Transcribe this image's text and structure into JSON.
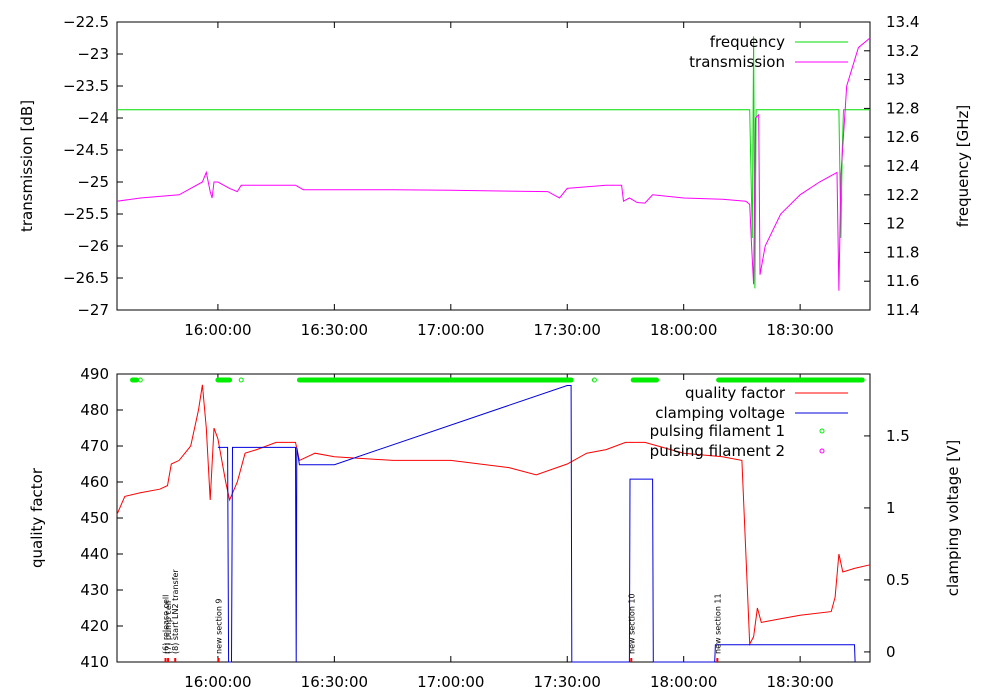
{
  "chart_data": [
    {
      "type": "line",
      "xlabel": "",
      "ylabel": "transmission [dB]",
      "y2label": "frequency [GHz]",
      "xlim": [
        "15:34:00",
        "18:48:00"
      ],
      "ylim": [
        -27,
        -22.5
      ],
      "y2lim": [
        11.4,
        13.4
      ],
      "x_ticks": [
        "16:00:00",
        "16:30:00",
        "17:00:00",
        "17:30:00",
        "18:00:00",
        "18:30:00"
      ],
      "y_ticks": [
        "-27",
        "-26.5",
        "-26",
        "-25.5",
        "-25",
        "-24.5",
        "-24",
        "-23.5",
        "-23",
        "-22.5"
      ],
      "y2_ticks": [
        "11.4",
        "11.6",
        "11.8",
        "12",
        "12.2",
        "12.4",
        "12.6",
        "12.8",
        "13",
        "13.2",
        "13.4"
      ],
      "legend": "top-right",
      "grid": false,
      "series": [
        {
          "name": "frequency",
          "color": "#00dd00",
          "axis": "y2",
          "points": [
            [
              "15:34:00",
              12.79
            ],
            [
              "18:17:00",
              12.79
            ],
            [
              "18:17:40",
              11.9
            ],
            [
              "18:18:00",
              13.3
            ],
            [
              "18:18:20",
              11.55
            ],
            [
              "18:18:40",
              12.79
            ],
            [
              "18:40:00",
              12.79
            ],
            [
              "18:40:30",
              11.9
            ],
            [
              "18:40:50",
              12.5
            ],
            [
              "18:41:10",
              12.79
            ],
            [
              "18:48:00",
              12.79
            ]
          ]
        },
        {
          "name": "transmission",
          "color": "#ff00ff",
          "axis": "y",
          "points": [
            [
              "15:34:00",
              -25.3
            ],
            [
              "15:40:00",
              -25.25
            ],
            [
              "15:50:00",
              -25.2
            ],
            [
              "15:56:00",
              -25.0
            ],
            [
              "15:57:00",
              -24.85
            ],
            [
              "15:58:00",
              -25.15
            ],
            [
              "15:58:30",
              -25.25
            ],
            [
              "15:59:00",
              -25.0
            ],
            [
              "16:00:00",
              -25.0
            ],
            [
              "16:03:00",
              -25.1
            ],
            [
              "16:05:00",
              -25.15
            ],
            [
              "16:06:00",
              -25.05
            ],
            [
              "16:20:00",
              -25.05
            ],
            [
              "16:22:00",
              -25.12
            ],
            [
              "16:45:00",
              -25.12
            ],
            [
              "17:00:00",
              -25.13
            ],
            [
              "17:25:00",
              -25.15
            ],
            [
              "17:28:00",
              -25.25
            ],
            [
              "17:30:00",
              -25.1
            ],
            [
              "17:40:00",
              -25.05
            ],
            [
              "17:44:00",
              -25.05
            ],
            [
              "17:44:30",
              -25.3
            ],
            [
              "17:46:00",
              -25.25
            ],
            [
              "17:48:00",
              -25.32
            ],
            [
              "17:50:00",
              -25.33
            ],
            [
              "17:52:00",
              -25.2
            ],
            [
              "18:00:00",
              -25.25
            ],
            [
              "18:10:00",
              -25.27
            ],
            [
              "18:16:00",
              -25.3
            ],
            [
              "18:17:00",
              -25.35
            ],
            [
              "18:17:30",
              -26.0
            ],
            [
              "18:18:00",
              -26.6
            ],
            [
              "18:18:30",
              -24.0
            ],
            [
              "18:19:20",
              -23.95
            ],
            [
              "18:19:40",
              -26.45
            ],
            [
              "18:21:00",
              -26.0
            ],
            [
              "18:25:00",
              -25.5
            ],
            [
              "18:30:00",
              -25.2
            ],
            [
              "18:35:00",
              -25.0
            ],
            [
              "18:39:30",
              -24.85
            ],
            [
              "18:40:00",
              -26.7
            ],
            [
              "18:40:30",
              -24.9
            ],
            [
              "18:42:00",
              -23.5
            ],
            [
              "18:45:00",
              -22.9
            ],
            [
              "18:48:00",
              -22.75
            ]
          ]
        }
      ]
    },
    {
      "type": "line",
      "xlabel": "",
      "ylabel": "quality factor",
      "y2label": "clamping voltage [V]",
      "xlim": [
        "15:34:00",
        "18:48:00"
      ],
      "ylim": [
        410,
        490
      ],
      "y2lim": [
        -0.07,
        1.93
      ],
      "x_ticks": [
        "16:00:00",
        "16:30:00",
        "17:00:00",
        "17:30:00",
        "18:00:00",
        "18:30:00"
      ],
      "y_ticks": [
        "410",
        "420",
        "430",
        "440",
        "450",
        "460",
        "470",
        "480",
        "490"
      ],
      "y2_ticks": [
        "0",
        "0.5",
        "1",
        "1.5"
      ],
      "legend": "top-right",
      "grid": false,
      "series": [
        {
          "name": "quality factor",
          "color": "#ff0000",
          "axis": "y",
          "points": [
            [
              "15:34:00",
              451
            ],
            [
              "15:36:00",
              456
            ],
            [
              "15:40:00",
              457
            ],
            [
              "15:45:00",
              458
            ],
            [
              "15:47:00",
              459
            ],
            [
              "15:48:00",
              465
            ],
            [
              "15:50:00",
              466
            ],
            [
              "15:53:00",
              470
            ],
            [
              "15:55:00",
              480
            ],
            [
              "15:56:00",
              487
            ],
            [
              "15:57:00",
              475
            ],
            [
              "15:58:00",
              455
            ],
            [
              "15:59:00",
              475
            ],
            [
              "16:00:00",
              472
            ],
            [
              "16:02:00",
              460
            ],
            [
              "16:03:00",
              455
            ],
            [
              "16:05:00",
              460
            ],
            [
              "16:07:00",
              468
            ],
            [
              "16:10:00",
              469
            ],
            [
              "16:15:00",
              471
            ],
            [
              "16:20:00",
              471
            ],
            [
              "16:21:00",
              466
            ],
            [
              "16:25:00",
              468
            ],
            [
              "16:30:00",
              467
            ],
            [
              "16:45:00",
              466
            ],
            [
              "17:00:00",
              466
            ],
            [
              "17:15:00",
              464
            ],
            [
              "17:22:00",
              462
            ],
            [
              "17:30:00",
              465
            ],
            [
              "17:35:00",
              468
            ],
            [
              "17:40:00",
              469
            ],
            [
              "17:45:00",
              471
            ],
            [
              "17:50:00",
              471
            ],
            [
              "18:00:00",
              468
            ],
            [
              "18:10:00",
              467
            ],
            [
              "18:15:00",
              466
            ],
            [
              "18:17:00",
              415
            ],
            [
              "18:18:00",
              417
            ],
            [
              "18:19:00",
              425
            ],
            [
              "18:20:00",
              421
            ],
            [
              "18:25:00",
              422
            ],
            [
              "18:30:00",
              423
            ],
            [
              "18:38:00",
              424
            ],
            [
              "18:39:00",
              428
            ],
            [
              "18:40:00",
              440
            ],
            [
              "18:41:00",
              435
            ],
            [
              "18:44:00",
              436
            ],
            [
              "18:48:00",
              437
            ]
          ]
        },
        {
          "name": "clamping voltage",
          "color": "#0000dd",
          "axis": "y2",
          "points": [
            [
              "16:00:00",
              1.42
            ],
            [
              "16:02:30",
              1.42
            ],
            [
              "16:02:45",
              -0.07
            ],
            [
              "16:03:30",
              -0.07
            ],
            [
              "16:03:45",
              1.42
            ],
            [
              "16:20:00",
              1.42
            ],
            [
              "16:20:10",
              -0.07
            ],
            [
              "16:20:20",
              1.42
            ],
            [
              "16:21:00",
              1.3
            ],
            [
              "16:30:00",
              1.3
            ],
            [
              "17:30:00",
              1.85
            ],
            [
              "17:31:00",
              1.85
            ],
            [
              "17:31:10",
              -0.07
            ],
            [
              "17:46:00",
              -0.07
            ],
            [
              "17:46:10",
              1.2
            ],
            [
              "17:52:00",
              1.2
            ],
            [
              "17:52:10",
              -0.07
            ],
            [
              "18:08:00",
              -0.07
            ],
            [
              "18:08:10",
              0.05
            ],
            [
              "18:44:00",
              0.05
            ],
            [
              "18:44:10",
              -0.07
            ]
          ]
        },
        {
          "name": "pulsing filament 1",
          "color": "#00ee00",
          "axis": "y",
          "segments": [
            [
              "15:38:00",
              "15:39:00"
            ],
            [
              "15:40:00",
              "15:40:30"
            ],
            [
              "16:00:00",
              "16:03:00"
            ],
            [
              "16:06:00",
              "16:06:10"
            ],
            [
              "16:21:00",
              "17:31:00"
            ],
            [
              "17:37:00",
              "17:37:10"
            ],
            [
              "17:47:00",
              "17:53:00"
            ],
            [
              "18:09:00",
              "18:46:00"
            ]
          ]
        },
        {
          "name": "pulsing filament 2",
          "color": "#ff00ff",
          "axis": "y",
          "segments": []
        }
      ],
      "annotations": [
        {
          "x": "15:46:30",
          "text": "(6) release cell"
        },
        {
          "x": "15:47:10",
          "text": "(7) pump cell"
        },
        {
          "x": "15:49:00",
          "text": "(8) start LN2 transfer"
        },
        {
          "x": "16:00:10",
          "text": "new section 9"
        },
        {
          "x": "17:46:30",
          "text": "new section 10"
        },
        {
          "x": "18:08:40",
          "text": "new section 11"
        }
      ]
    }
  ]
}
